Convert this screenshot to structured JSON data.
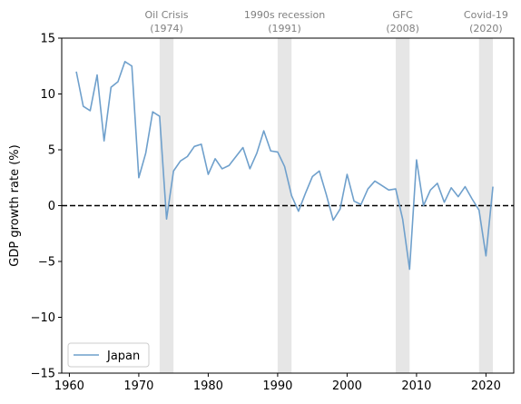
{
  "chart_data": {
    "type": "line",
    "ylabel": "GDP growth rate (%)",
    "xlabel": "",
    "xlim": [
      1958.9,
      2024.0
    ],
    "ylim": [
      -15,
      15
    ],
    "xticks": [
      1960,
      1970,
      1980,
      1990,
      2000,
      2010,
      2020
    ],
    "yticks": [
      -15,
      -10,
      -5,
      0,
      5,
      10,
      15
    ],
    "ytick_labels": [
      "−15",
      "−10",
      "−5",
      "0",
      "5",
      "10",
      "15"
    ],
    "zero_line": {
      "y": 0,
      "style": "dashed",
      "color": "#000000"
    },
    "grid": false,
    "legend": {
      "position": "lower-left"
    },
    "recessions": [
      {
        "label": "Oil Crisis",
        "year_label": "(1974)",
        "start": 1973,
        "end": 1975
      },
      {
        "label": "1990s recession",
        "year_label": "(1991)",
        "start": 1990,
        "end": 1992
      },
      {
        "label": "GFC",
        "year_label": "(2008)",
        "start": 2007,
        "end": 2009
      },
      {
        "label": "Covid-19",
        "year_label": "(2020)",
        "start": 2019,
        "end": 2021
      }
    ],
    "series": [
      {
        "name": "Japan",
        "color": "#6fa0cc",
        "x": [
          1961,
          1962,
          1963,
          1964,
          1965,
          1966,
          1967,
          1968,
          1969,
          1970,
          1971,
          1972,
          1973,
          1974,
          1975,
          1976,
          1977,
          1978,
          1979,
          1980,
          1981,
          1982,
          1983,
          1984,
          1985,
          1986,
          1987,
          1988,
          1989,
          1990,
          1991,
          1992,
          1993,
          1994,
          1995,
          1996,
          1997,
          1998,
          1999,
          2000,
          2001,
          2002,
          2003,
          2004,
          2005,
          2006,
          2007,
          2008,
          2009,
          2010,
          2011,
          2012,
          2013,
          2014,
          2015,
          2016,
          2017,
          2018,
          2019,
          2020,
          2021
        ],
        "values": [
          12.0,
          8.9,
          8.5,
          11.7,
          5.8,
          10.6,
          11.1,
          12.9,
          12.5,
          2.5,
          4.7,
          8.4,
          8.0,
          -1.2,
          3.1,
          4.0,
          4.4,
          5.3,
          5.5,
          2.8,
          4.2,
          3.3,
          3.6,
          4.4,
          5.2,
          3.3,
          4.7,
          6.7,
          4.9,
          4.8,
          3.5,
          0.9,
          -0.5,
          1.1,
          2.6,
          3.1,
          1.0,
          -1.3,
          -0.3,
          2.8,
          0.4,
          0.1,
          1.5,
          2.2,
          1.8,
          1.4,
          1.5,
          -1.2,
          -5.7,
          4.1,
          0.0,
          1.4,
          2.0,
          0.3,
          1.6,
          0.8,
          1.7,
          0.6,
          -0.4,
          -4.5,
          1.7
        ]
      }
    ]
  }
}
